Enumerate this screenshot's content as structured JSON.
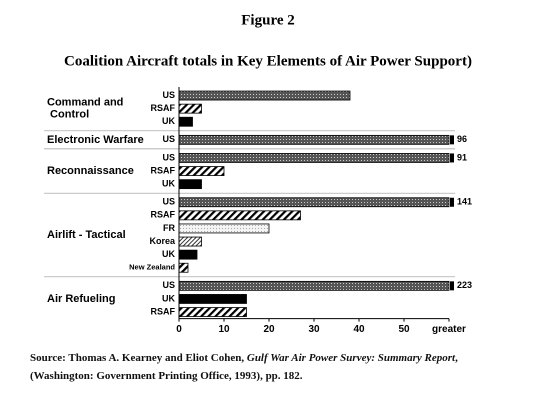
{
  "chart_data": {
    "type": "bar",
    "title": "Figure 2",
    "subtitle": "Coalition Aircraft totals in Key Elements of Air Power Support)",
    "groups": [
      {
        "name": "Command and Control",
        "categories": [
          "US",
          "RSAF",
          "UK"
        ],
        "values": [
          38,
          5,
          3
        ],
        "fills": [
          "dots",
          "hatch",
          "solid"
        ]
      },
      {
        "name": "Electronic Warfare",
        "categories": [
          "US"
        ],
        "values": [
          96
        ],
        "fills": [
          "dots"
        ]
      },
      {
        "name": "Reconnaissance",
        "categories": [
          "US",
          "RSAF",
          "UK"
        ],
        "values": [
          91,
          10,
          5
        ],
        "fills": [
          "dots",
          "hatch",
          "solid"
        ]
      },
      {
        "name": "Airlift - Tactical",
        "categories": [
          "US",
          "RSAF",
          "FR",
          "Korea",
          "UK",
          "New Zealand"
        ],
        "values": [
          141,
          27,
          20,
          5,
          4,
          2
        ],
        "fills": [
          "dots",
          "hatch",
          "light",
          "fine-hatch",
          "solid",
          "hatch"
        ]
      },
      {
        "name": "Air Refueling",
        "categories": [
          "US",
          "UK",
          "RSAF"
        ],
        "values": [
          223,
          15,
          15
        ],
        "fills": [
          "dots",
          "solid",
          "hatch"
        ]
      }
    ],
    "xlim": [
      0,
      60
    ],
    "xticks": [
      0,
      10,
      20,
      30,
      40,
      50,
      {
        "value": 60,
        "label": "greater"
      }
    ]
  },
  "source": {
    "prefix": "Source: Thomas A. Kearney and Eliot Cohen, ",
    "title": "Gulf War Air Power Survey: Summary Report",
    "suffix": ", (Washington: Government Printing Office, 1993), pp. 182."
  }
}
